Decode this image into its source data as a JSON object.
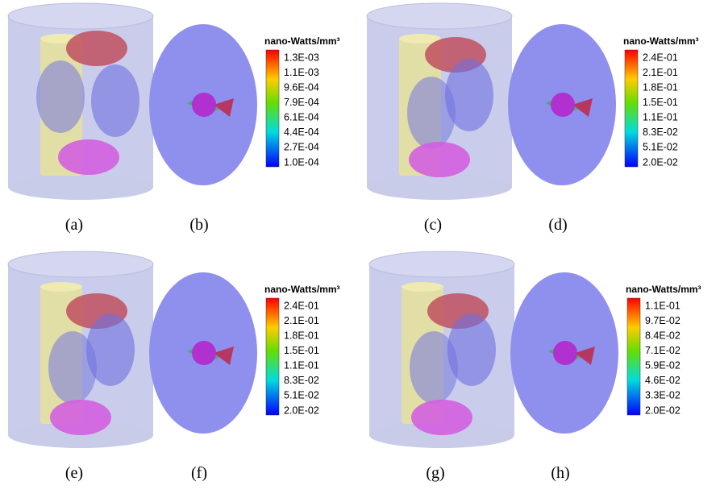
{
  "panels": [
    "(a)",
    "(b)",
    "(c)",
    "(d)",
    "(e)",
    "(f)",
    "(g)",
    "(h)"
  ],
  "colorbars": [
    {
      "title": "nano-Watts/mm³",
      "ticks": [
        "1.3E-03",
        "1.1E-03",
        "9.6E-04",
        "7.9E-04",
        "6.1E-04",
        "4.4E-04",
        "2.7E-04",
        "1.0E-04"
      ]
    },
    {
      "title": "nano-Watts/mm³",
      "ticks": [
        "2.4E-01",
        "2.1E-01",
        "1.8E-01",
        "1.5E-01",
        "1.1E-01",
        "8.3E-02",
        "5.1E-02",
        "2.0E-02"
      ]
    },
    {
      "title": "nano-Watts/mm³",
      "ticks": [
        "2.4E-01",
        "2.1E-01",
        "1.8E-01",
        "1.5E-01",
        "1.1E-01",
        "8.3E-02",
        "5.1E-02",
        "2.0E-02"
      ]
    },
    {
      "title": "nano-Watts/mm³",
      "ticks": [
        "1.1E-01",
        "9.7E-02",
        "8.4E-02",
        "7.1E-02",
        "5.9E-02",
        "4.6E-02",
        "3.3E-02",
        "2.0E-02"
      ]
    }
  ]
}
